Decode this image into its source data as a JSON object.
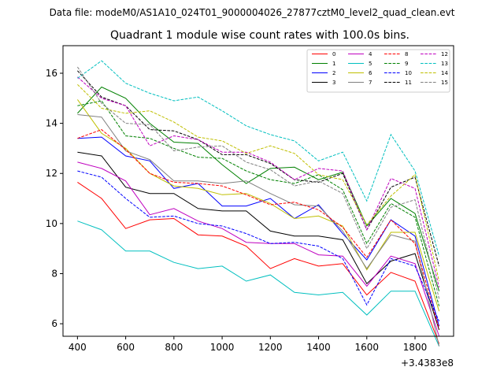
{
  "chart_data": {
    "type": "line",
    "suptitle": "Data file: modeM0/AS1A10_024T01_9000004026_27877cztM0_level2_quad_clean.evt",
    "title": "Quadrant 1 module wise count rates with 100.0s bins.",
    "xlabel": "",
    "ylabel": "",
    "x_offset_label": "+3.4383e8",
    "x": [
      400,
      500,
      600,
      700,
      800,
      900,
      1000,
      1100,
      1200,
      1300,
      1400,
      1500,
      1600,
      1700,
      1800,
      1900
    ],
    "xlim": [
      340,
      1960
    ],
    "ylim": [
      5.5,
      17.1
    ],
    "xticks": [
      400,
      600,
      800,
      1000,
      1200,
      1400,
      1600,
      1800
    ],
    "xtick_labels": [
      "400",
      "600",
      "800",
      "1000",
      "1200",
      "1400",
      "1600",
      "1800"
    ],
    "yticks": [
      6,
      8,
      10,
      12,
      14,
      16
    ],
    "ytick_labels": [
      "6",
      "8",
      "10",
      "12",
      "14",
      "16"
    ],
    "grid": false,
    "legend_position": "top-right",
    "legend_columns": 4,
    "series": [
      {
        "name": "0",
        "color": "#ff0000",
        "dash": "solid",
        "values": [
          11.65,
          11.0,
          9.8,
          10.15,
          10.2,
          9.55,
          9.5,
          9.1,
          8.2,
          8.6,
          8.3,
          8.4,
          7.15,
          8.05,
          7.7,
          5.2
        ]
      },
      {
        "name": "1",
        "color": "#008000",
        "dash": "solid",
        "values": [
          14.4,
          15.45,
          15.0,
          14.0,
          13.25,
          13.2,
          12.35,
          11.6,
          12.2,
          12.25,
          11.75,
          12.05,
          9.9,
          11.0,
          10.4,
          7.3
        ]
      },
      {
        "name": "2",
        "color": "#0000ff",
        "dash": "solid",
        "values": [
          13.4,
          13.45,
          12.7,
          12.5,
          11.4,
          11.6,
          10.7,
          10.7,
          11.0,
          10.2,
          10.75,
          9.6,
          8.55,
          10.15,
          9.5,
          5.9
        ]
      },
      {
        "name": "3",
        "color": "#000000",
        "dash": "solid",
        "values": [
          12.85,
          12.7,
          11.45,
          11.2,
          11.2,
          10.6,
          10.5,
          10.5,
          9.7,
          9.5,
          9.5,
          9.35,
          7.6,
          8.5,
          8.8,
          5.75
        ]
      },
      {
        "name": "4",
        "color": "#bf00bf",
        "dash": "solid",
        "values": [
          12.45,
          12.2,
          11.7,
          10.35,
          10.6,
          10.1,
          9.8,
          9.25,
          9.2,
          9.2,
          8.75,
          8.7,
          7.5,
          8.7,
          8.4,
          5.5
        ]
      },
      {
        "name": "5",
        "color": "#00bfbf",
        "dash": "solid",
        "values": [
          10.1,
          9.75,
          8.9,
          8.9,
          8.45,
          8.2,
          8.3,
          7.7,
          7.95,
          7.25,
          7.15,
          7.25,
          6.35,
          7.3,
          7.3,
          5.1
        ]
      },
      {
        "name": "6",
        "color": "#bfbf00",
        "dash": "solid",
        "values": [
          14.95,
          13.6,
          13.0,
          12.0,
          11.5,
          11.4,
          11.15,
          11.2,
          10.8,
          10.2,
          10.3,
          9.9,
          8.15,
          9.65,
          9.65,
          6.5
        ]
      },
      {
        "name": "7",
        "color": "#808080",
        "dash": "solid",
        "values": [
          14.35,
          14.25,
          12.9,
          12.55,
          11.7,
          11.7,
          11.6,
          11.7,
          11.2,
          10.75,
          10.7,
          9.7,
          8.2,
          9.55,
          9.3,
          5.1
        ]
      },
      {
        "name": "8",
        "color": "#ff0000",
        "dash": "dashed",
        "values": [
          13.4,
          13.75,
          12.95,
          12.0,
          11.65,
          11.6,
          11.5,
          11.15,
          10.75,
          10.85,
          10.55,
          9.85,
          8.65,
          10.15,
          9.2,
          5.8
        ]
      },
      {
        "name": "9",
        "color": "#008000",
        "dash": "dashed",
        "values": [
          14.7,
          14.9,
          13.5,
          13.4,
          13.0,
          12.65,
          12.6,
          12.1,
          11.75,
          11.6,
          11.95,
          11.35,
          9.2,
          10.8,
          10.25,
          6.7
        ]
      },
      {
        "name": "10",
        "color": "#0000ff",
        "dash": "dashed",
        "values": [
          12.1,
          11.85,
          11.0,
          10.25,
          10.3,
          10.0,
          9.9,
          9.6,
          9.2,
          9.25,
          9.1,
          8.6,
          6.75,
          8.6,
          8.3,
          6.1
        ]
      },
      {
        "name": "11",
        "color": "#000000",
        "dash": "dashed",
        "values": [
          16.1,
          15.05,
          14.7,
          13.75,
          13.7,
          13.35,
          12.75,
          12.75,
          12.4,
          11.75,
          11.65,
          12.0,
          9.75,
          11.45,
          11.85,
          8.3
        ]
      },
      {
        "name": "12",
        "color": "#bf00bf",
        "dash": "dashed",
        "values": [
          15.85,
          15.0,
          14.7,
          13.1,
          13.5,
          13.35,
          12.85,
          12.85,
          12.45,
          11.75,
          12.2,
          12.1,
          9.75,
          11.8,
          11.4,
          7.45
        ]
      },
      {
        "name": "13",
        "color": "#00bfbf",
        "dash": "dashed",
        "values": [
          15.8,
          16.5,
          15.6,
          15.2,
          14.9,
          15.05,
          14.5,
          13.9,
          13.55,
          13.3,
          12.5,
          12.85,
          10.9,
          13.55,
          12.1,
          8.7
        ]
      },
      {
        "name": "14",
        "color": "#bfbf00",
        "dash": "dashed",
        "values": [
          15.55,
          14.6,
          14.4,
          14.5,
          14.05,
          13.45,
          13.3,
          12.8,
          13.1,
          12.8,
          11.95,
          11.75,
          9.95,
          11.1,
          11.95,
          7.7
        ]
      },
      {
        "name": "15",
        "color": "#808080",
        "dash": "dashed",
        "values": [
          16.25,
          14.8,
          14.0,
          13.95,
          12.9,
          13.05,
          13.1,
          12.45,
          12.15,
          11.5,
          11.7,
          11.2,
          9.0,
          10.65,
          10.95,
          7.0
        ]
      }
    ]
  }
}
